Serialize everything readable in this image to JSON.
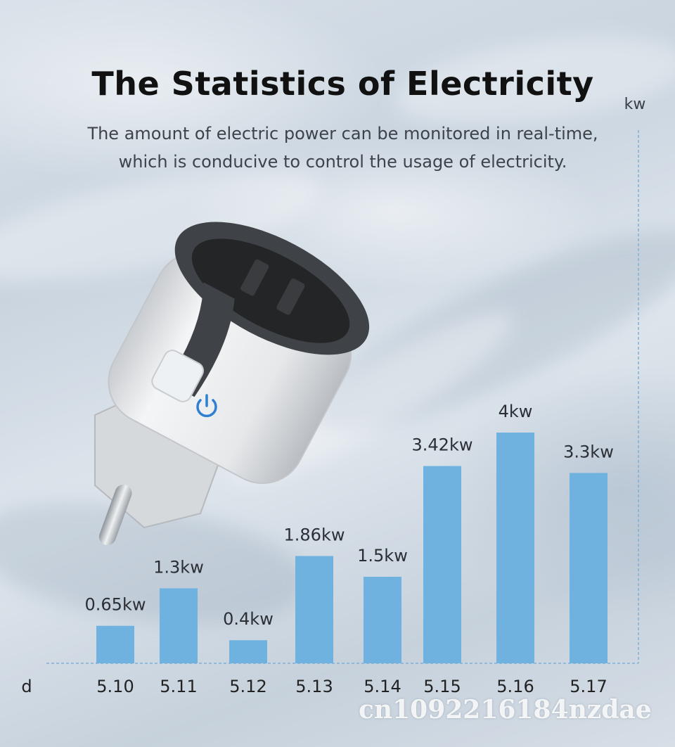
{
  "header": {
    "title": "The Statistics of Electricity",
    "subtitle_line1": "The amount of electric power can be monitored in real-time,",
    "subtitle_line2": "which is conducive to control the usage of electricity."
  },
  "watermark": "cn1092216184nzdae",
  "colors": {
    "bar": "#6fb2e0",
    "axis": "#7fb0d8",
    "text": "#222222"
  },
  "icons": {
    "product": "smart-plug-icon",
    "power": "power-icon"
  },
  "chart_data": {
    "type": "bar",
    "ylabel": "kw",
    "xlabel": "d",
    "categories": [
      "5.10",
      "5.11",
      "5.12",
      "5.13",
      "5.14",
      "5.15",
      "5.16",
      "5.17"
    ],
    "values": [
      0.65,
      1.3,
      0.4,
      1.86,
      1.5,
      3.42,
      4,
      3.3
    ],
    "data_labels": [
      "0.65kw",
      "1.3kw",
      "0.4kw",
      "1.86kw",
      "1.5kw",
      "3.42kw",
      "4kw",
      "3.3kw"
    ],
    "grid": false,
    "legend": "none"
  }
}
